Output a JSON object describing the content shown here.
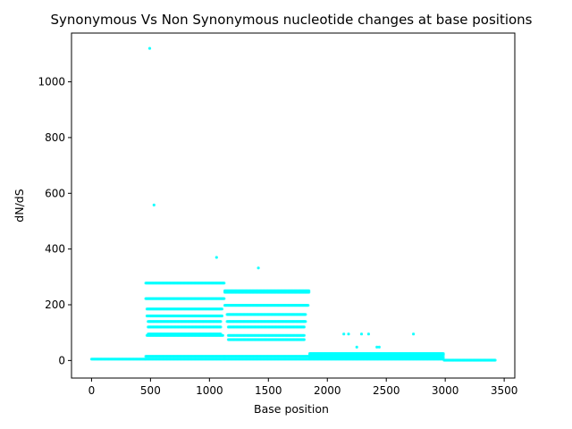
{
  "chart_data": {
    "type": "scatter",
    "title": "Synonymous Vs Non Synonymous nucleotide changes at base positions",
    "xlabel": "Base position",
    "ylabel": "dN/dS",
    "xlim": [
      -170,
      3590
    ],
    "ylim": [
      -63,
      1175
    ],
    "xticks": [
      0,
      500,
      1000,
      1500,
      2000,
      2500,
      3000,
      3500
    ],
    "yticks": [
      0,
      200,
      400,
      600,
      800,
      1000
    ],
    "grid": false,
    "legend": "none",
    "marker_color": "#00ffff",
    "series": [
      {
        "bands": [
          {
            "x": [
              0,
              460
            ],
            "y": 5
          },
          {
            "x": [
              460,
              1130
            ],
            "y": 278
          },
          {
            "x": [
              460,
              1130
            ],
            "y": 222
          },
          {
            "x": [
              470,
              1110
            ],
            "y": 185
          },
          {
            "x": [
              470,
              1110
            ],
            "y": 160
          },
          {
            "x": [
              480,
              1100
            ],
            "y": 140
          },
          {
            "x": [
              480,
              1100
            ],
            "y": 120
          },
          {
            "x": [
              480,
              1100
            ],
            "y": 95
          },
          {
            "x": [
              470,
              1120
            ],
            "y": 90
          },
          {
            "x": [
              460,
              1130
            ],
            "y": 15
          },
          {
            "x": [
              460,
              1130
            ],
            "y": 5
          },
          {
            "x": [
              1130,
              1850
            ],
            "y": 250
          },
          {
            "x": [
              1130,
              1850
            ],
            "y": 245
          },
          {
            "x": [
              1130,
              1840
            ],
            "y": 198
          },
          {
            "x": [
              1150,
              1820
            ],
            "y": 165
          },
          {
            "x": [
              1150,
              1820
            ],
            "y": 140
          },
          {
            "x": [
              1160,
              1810
            ],
            "y": 120
          },
          {
            "x": [
              1160,
              1810
            ],
            "y": 90
          },
          {
            "x": [
              1160,
              1810
            ],
            "y": 75
          },
          {
            "x": [
              1130,
              1850
            ],
            "y": 15
          },
          {
            "x": [
              1130,
              1850
            ],
            "y": 5
          },
          {
            "x": [
              1850,
              2990
            ],
            "y": 25
          },
          {
            "x": [
              1850,
              2990
            ],
            "y": 20
          },
          {
            "x": [
              1850,
              2990
            ],
            "y": 12
          },
          {
            "x": [
              1850,
              2990
            ],
            "y": 5
          },
          {
            "x": [
              2990,
              3430
            ],
            "y": 1
          }
        ],
        "points": [
          {
            "x": 493,
            "y": 1120
          },
          {
            "x": 530,
            "y": 558
          },
          {
            "x": 1060,
            "y": 370
          },
          {
            "x": 1415,
            "y": 332
          },
          {
            "x": 2140,
            "y": 95
          },
          {
            "x": 2180,
            "y": 95
          },
          {
            "x": 2290,
            "y": 95
          },
          {
            "x": 2350,
            "y": 95
          },
          {
            "x": 2730,
            "y": 95
          },
          {
            "x": 2420,
            "y": 48
          },
          {
            "x": 2440,
            "y": 48
          },
          {
            "x": 2250,
            "y": 48
          }
        ]
      }
    ]
  }
}
